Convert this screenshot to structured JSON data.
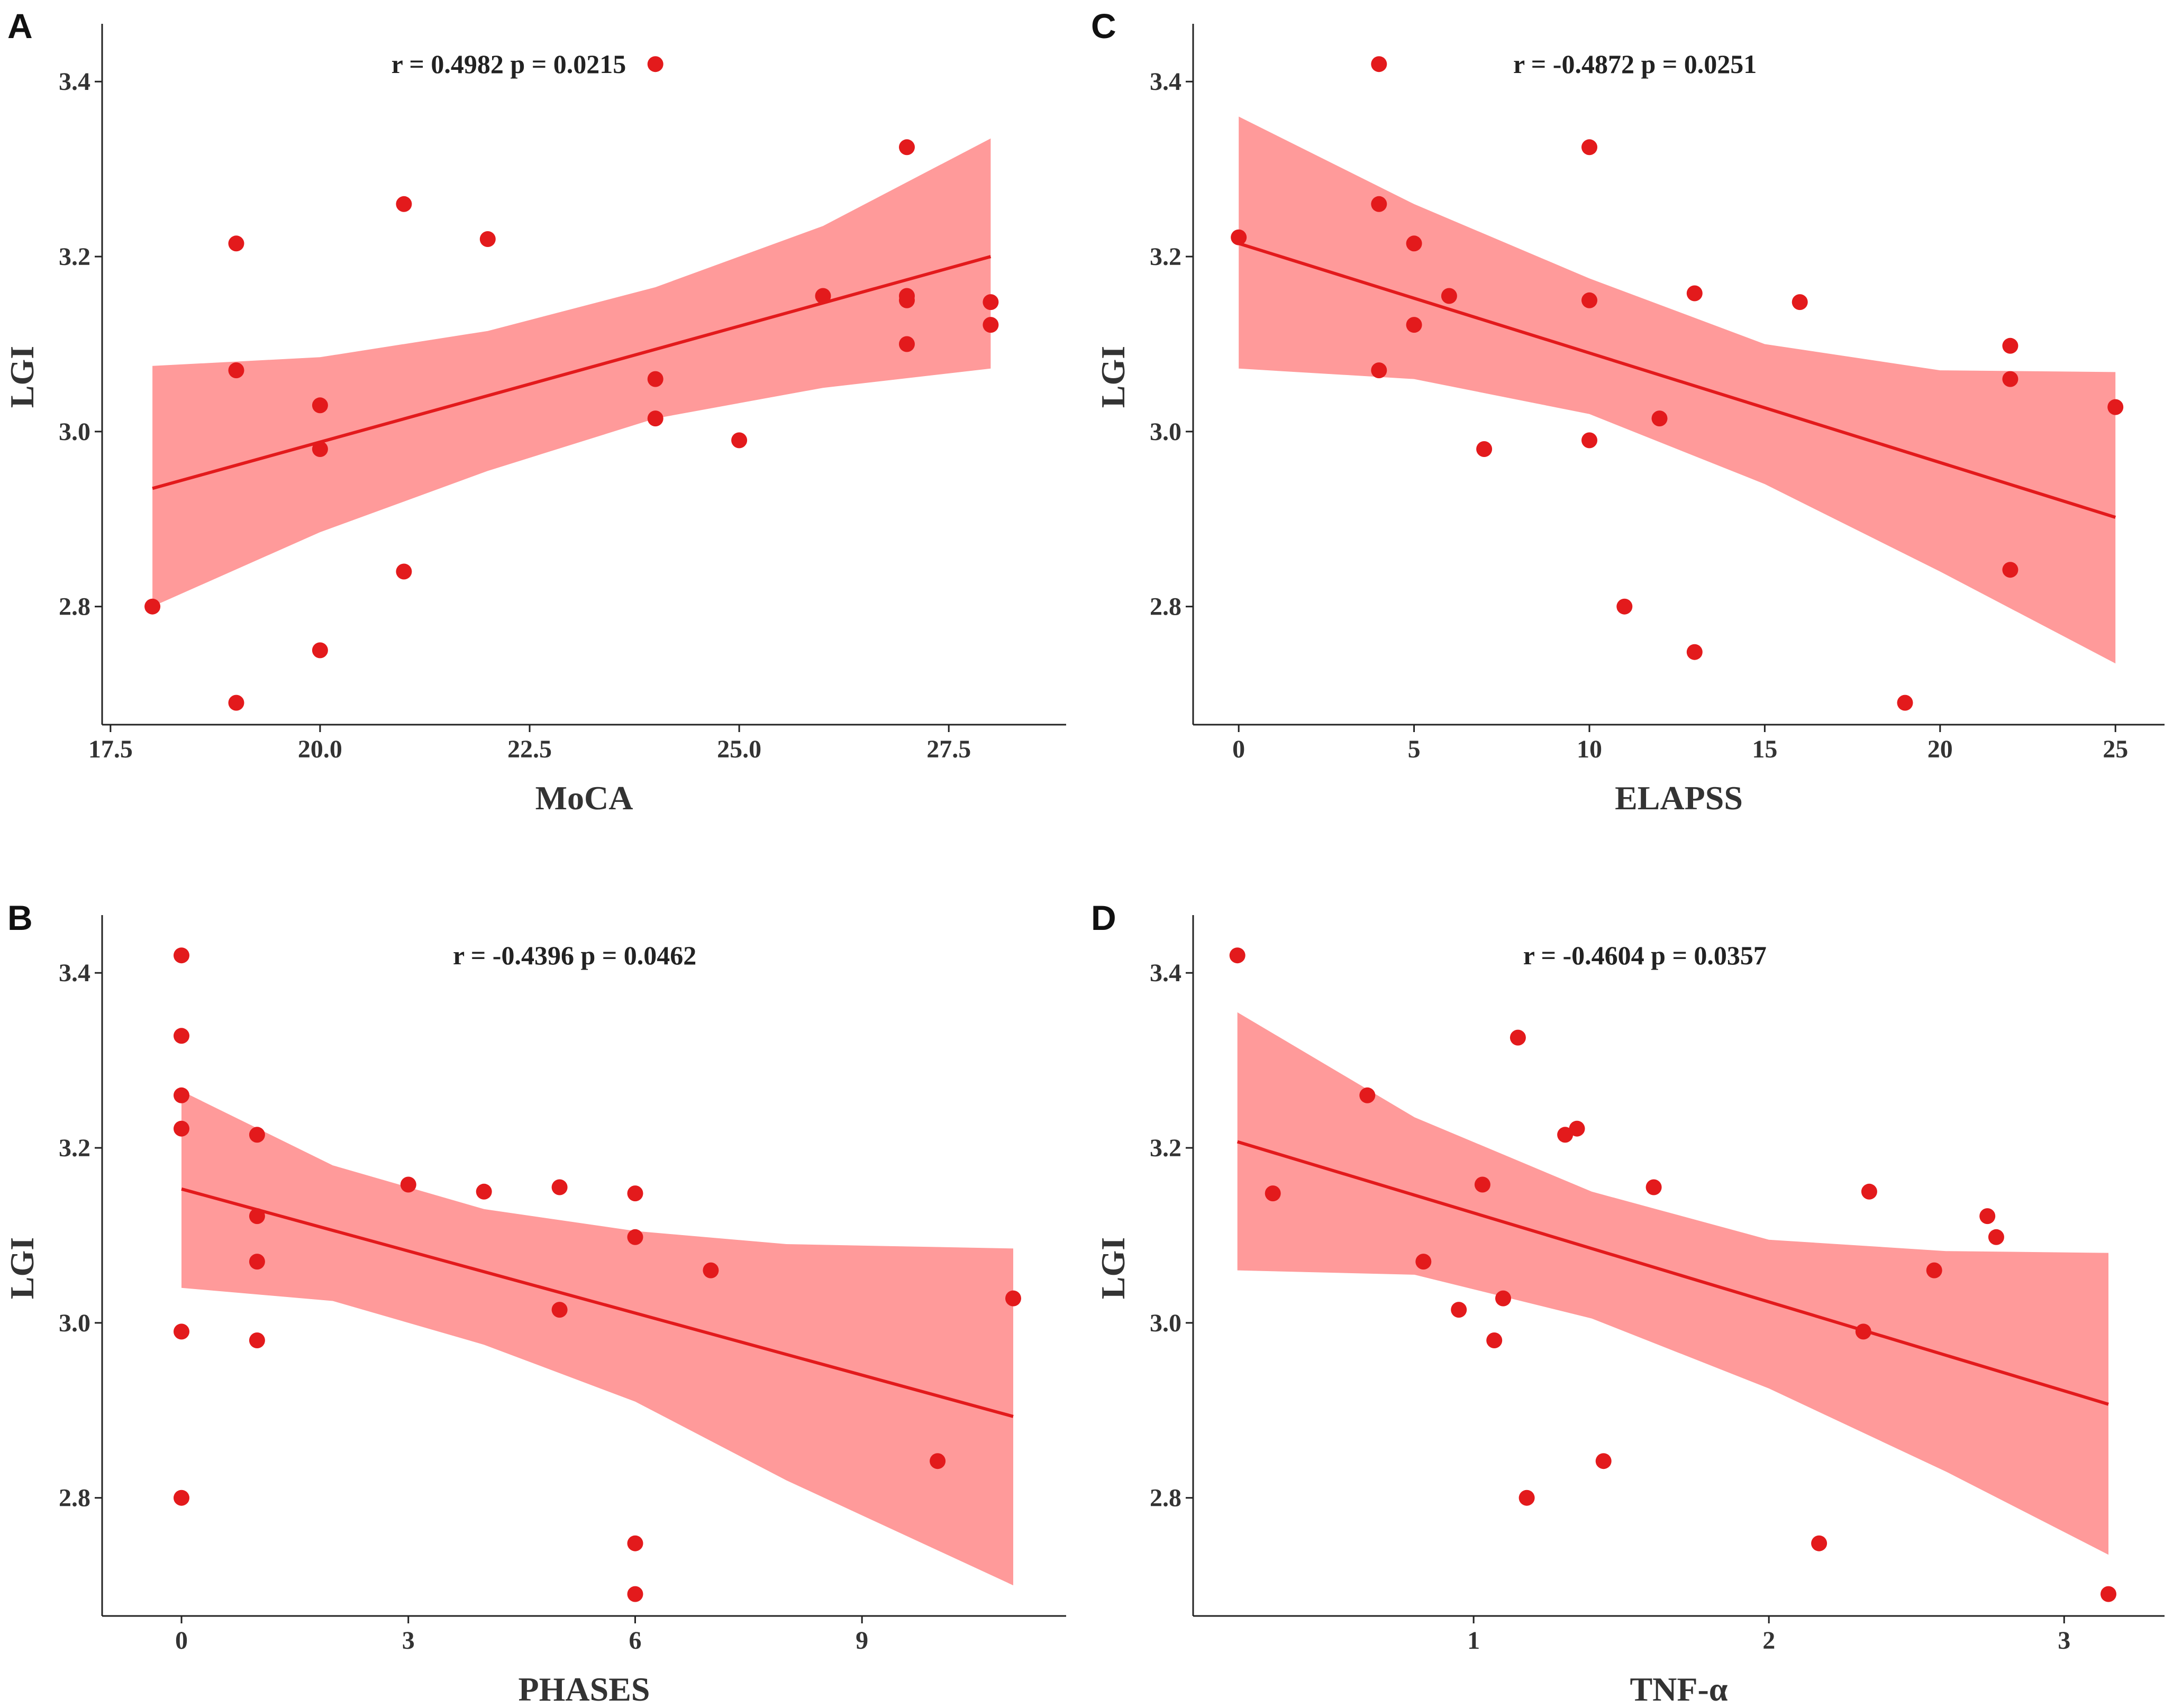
{
  "colors": {
    "point": "#e31a1c",
    "line": "#e31a1c",
    "band": "#ff9a9a",
    "axis": "#222222",
    "text": "#333333"
  },
  "chart_data": [
    {
      "panel": "A",
      "type": "scatter",
      "xlabel": "MoCA",
      "ylabel": "LGI",
      "xlim": [
        17.4,
        28.9
      ],
      "ylim": [
        2.665,
        3.46
      ],
      "xticks": [
        17.5,
        20.0,
        22.5,
        25.0,
        27.5
      ],
      "xtick_labels": [
        "17.5",
        "20.0",
        "22.5",
        "25.0",
        "27.5"
      ],
      "yticks": [
        2.8,
        3.0,
        3.2,
        3.4
      ],
      "ytick_labels": [
        "2.8",
        "3.0",
        "3.2",
        "3.4"
      ],
      "annotation": "r = 0.4982 p = 0.0215",
      "annotation_pos": [
        22.25,
        3.42
      ],
      "x": [
        24,
        18,
        19,
        19,
        21,
        22,
        20,
        20,
        20,
        21,
        19,
        24,
        24,
        25,
        26,
        27,
        27,
        27,
        27,
        28,
        28
      ],
      "y": [
        3.42,
        2.8,
        2.69,
        3.07,
        3.26,
        3.22,
        3.03,
        2.98,
        2.75,
        2.84,
        3.215,
        3.06,
        3.015,
        2.99,
        3.155,
        3.325,
        3.155,
        3.15,
        3.1,
        3.148,
        3.122
      ],
      "fit": {
        "x": [
          18,
          28
        ],
        "y": [
          2.935,
          3.2
        ]
      },
      "ci_upper": [
        [
          18,
          3.075
        ],
        [
          20,
          3.085
        ],
        [
          22,
          3.115
        ],
        [
          24,
          3.165
        ],
        [
          26,
          3.235
        ],
        [
          28,
          3.335
        ]
      ],
      "ci_lower": [
        [
          18,
          2.8
        ],
        [
          20,
          2.885
        ],
        [
          22,
          2.955
        ],
        [
          24,
          3.015
        ],
        [
          26,
          3.05
        ],
        [
          28,
          3.072
        ]
      ]
    },
    {
      "panel": "C",
      "type": "scatter",
      "xlabel": "ELAPSS",
      "ylabel": "LGI",
      "xlim": [
        -1.3,
        26.4
      ],
      "ylim": [
        2.665,
        3.46
      ],
      "xticks": [
        0,
        5,
        10,
        15,
        20,
        25
      ],
      "xtick_labels": [
        "0",
        "5",
        "10",
        "15",
        "20",
        "25"
      ],
      "yticks": [
        2.8,
        3.0,
        3.2,
        3.4
      ],
      "ytick_labels": [
        "2.8",
        "3.0",
        "3.2",
        "3.4"
      ],
      "annotation": "r = -0.4872 p = 0.0251",
      "annotation_pos": [
        11.3,
        3.42
      ],
      "x": [
        4,
        0,
        4,
        5,
        5,
        6,
        4,
        7,
        10,
        10,
        10,
        11,
        12,
        13,
        13,
        16,
        19,
        22,
        22,
        22,
        25
      ],
      "y": [
        3.42,
        3.222,
        3.26,
        3.215,
        3.122,
        3.155,
        3.07,
        2.98,
        3.325,
        3.15,
        2.99,
        2.8,
        3.015,
        3.158,
        2.748,
        3.148,
        2.69,
        3.098,
        3.06,
        2.842,
        3.028
      ],
      "fit": {
        "x": [
          0,
          25
        ],
        "y": [
          3.215,
          2.902
        ]
      },
      "ci_upper": [
        [
          0,
          3.36
        ],
        [
          5,
          3.26
        ],
        [
          10,
          3.175
        ],
        [
          15,
          3.1
        ],
        [
          20,
          3.07
        ],
        [
          25,
          3.068
        ]
      ],
      "ci_lower": [
        [
          0,
          3.072
        ],
        [
          5,
          3.06
        ],
        [
          10,
          3.02
        ],
        [
          15,
          2.94
        ],
        [
          20,
          2.84
        ],
        [
          25,
          2.735
        ]
      ]
    },
    {
      "panel": "B",
      "type": "scatter",
      "xlabel": "PHASES",
      "ylabel": "LGI",
      "xlim": [
        -1.05,
        11.7
      ],
      "ylim": [
        2.665,
        3.46
      ],
      "xticks": [
        0,
        3,
        6,
        9
      ],
      "xtick_labels": [
        "0",
        "3",
        "6",
        "9"
      ],
      "yticks": [
        2.8,
        3.0,
        3.2,
        3.4
      ],
      "ytick_labels": [
        "2.8",
        "3.0",
        "3.2",
        "3.4"
      ],
      "annotation": "r = -0.4396 p = 0.0462",
      "annotation_pos": [
        5.2,
        3.42
      ],
      "x": [
        0,
        0,
        0,
        0,
        0,
        0,
        1,
        1,
        1,
        1,
        3,
        4,
        5,
        5,
        6,
        6,
        6,
        6,
        7,
        10,
        11
      ],
      "y": [
        3.42,
        3.328,
        3.26,
        3.222,
        2.99,
        2.8,
        3.215,
        3.122,
        3.07,
        2.98,
        3.158,
        3.15,
        3.155,
        3.015,
        3.148,
        3.098,
        2.748,
        2.69,
        3.06,
        2.842,
        3.028
      ],
      "fit": {
        "x": [
          0,
          11
        ],
        "y": [
          3.153,
          2.893
        ]
      },
      "ci_upper": [
        [
          0,
          3.265
        ],
        [
          2,
          3.18
        ],
        [
          4,
          3.13
        ],
        [
          6,
          3.105
        ],
        [
          8,
          3.09
        ],
        [
          11,
          3.085
        ]
      ],
      "ci_lower": [
        [
          0,
          3.04
        ],
        [
          2,
          3.025
        ],
        [
          4,
          2.975
        ],
        [
          6,
          2.91
        ],
        [
          8,
          2.82
        ],
        [
          11,
          2.7
        ]
      ]
    },
    {
      "panel": "D",
      "type": "scatter",
      "xlabel": "TNF-α",
      "ylabel": "LGI",
      "xlim": [
        0.05,
        3.34
      ],
      "ylim": [
        2.665,
        3.46
      ],
      "xticks": [
        1,
        2,
        3
      ],
      "xtick_labels": [
        "1",
        "2",
        "3"
      ],
      "yticks": [
        2.8,
        3.0,
        3.2,
        3.4
      ],
      "ytick_labels": [
        "2.8",
        "3.0",
        "3.2",
        "3.4"
      ],
      "annotation": "r = -0.4604 p = 0.0357",
      "annotation_pos": [
        1.58,
        3.42
      ],
      "x": [
        0.2,
        0.32,
        0.64,
        0.83,
        0.95,
        1.03,
        1.07,
        1.1,
        1.15,
        1.18,
        1.31,
        1.35,
        1.44,
        1.61,
        2.17,
        2.32,
        2.34,
        2.56,
        2.74,
        2.77,
        3.15
      ],
      "y": [
        3.42,
        3.148,
        3.26,
        3.07,
        3.015,
        3.158,
        2.98,
        3.028,
        3.326,
        2.8,
        3.215,
        3.222,
        2.842,
        3.155,
        2.748,
        2.99,
        3.15,
        3.06,
        3.122,
        3.098,
        2.69
      ],
      "fit": {
        "x": [
          0.2,
          3.15
        ],
        "y": [
          3.207,
          2.907
        ]
      },
      "ci_upper": [
        [
          0.2,
          3.355
        ],
        [
          0.8,
          3.235
        ],
        [
          1.4,
          3.15
        ],
        [
          2.0,
          3.095
        ],
        [
          2.6,
          3.082
        ],
        [
          3.15,
          3.08
        ]
      ],
      "ci_lower": [
        [
          0.2,
          3.06
        ],
        [
          0.8,
          3.055
        ],
        [
          1.4,
          3.005
        ],
        [
          2.0,
          2.925
        ],
        [
          2.6,
          2.83
        ],
        [
          3.15,
          2.735
        ]
      ]
    }
  ]
}
